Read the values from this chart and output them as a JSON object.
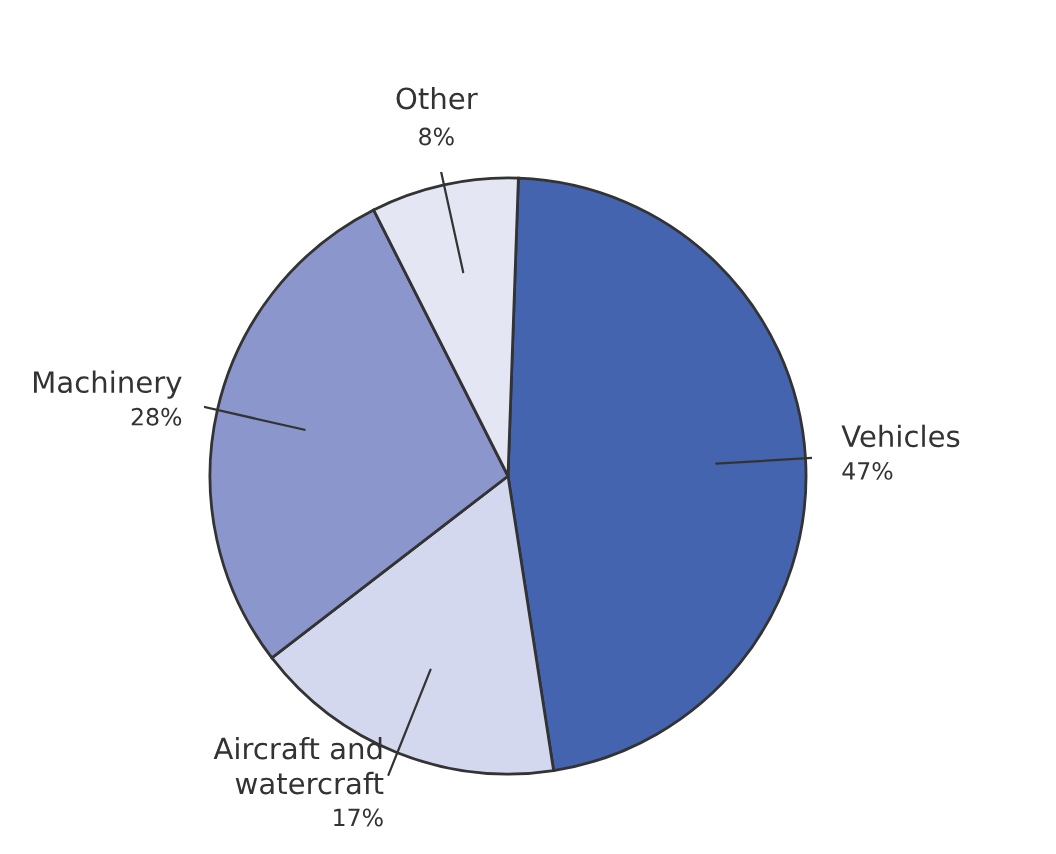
{
  "chart_data": {
    "type": "pie",
    "categories": [
      "Vehicles",
      "Aircraft and\nwatercraft",
      "Machinery",
      "Other"
    ],
    "values": [
      47,
      17,
      28,
      8
    ],
    "value_labels": [
      "47%",
      "17%",
      "28%",
      "8%"
    ],
    "colors": [
      "#4464b0",
      "#d4d8ee",
      "#8a96cc",
      "#e4e6f4"
    ]
  }
}
